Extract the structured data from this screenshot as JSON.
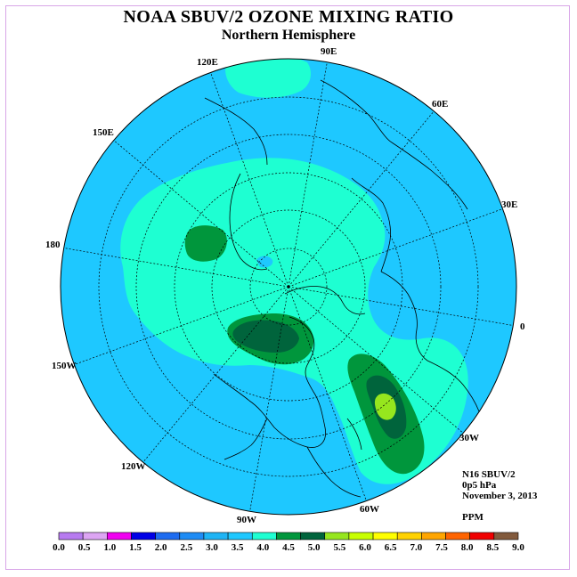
{
  "title": "NOAA SBUV/2 OZONE MIXING RATIO",
  "subtitle": "Northern Hemisphere",
  "longitude_labels": {
    "lon_90e": "90E",
    "lon_120e": "120E",
    "lon_60e": "60E",
    "lon_150e": "150E",
    "lon_30e": "30E",
    "lon_180": "180",
    "lon_0": "0",
    "lon_150w": "150W",
    "lon_30w": "30W",
    "lon_120w": "120W",
    "lon_60w": "60W",
    "lon_90w": "90W"
  },
  "info": {
    "instrument": "N16 SBUV/2",
    "level": "0p5 hPa",
    "date": "November 3, 2013",
    "units": "PPM"
  },
  "colorbar": {
    "labels": [
      "0.0",
      "0.5",
      "1.0",
      "1.5",
      "2.0",
      "2.5",
      "3.0",
      "3.5",
      "4.0",
      "4.5",
      "5.0",
      "5.5",
      "6.0",
      "6.5",
      "7.0",
      "7.5",
      "8.0",
      "8.5",
      "9.0"
    ],
    "colors": [
      "#b77bf0",
      "#dda5f3",
      "#f000f0",
      "#0000e6",
      "#1e6cf0",
      "#1e8cf5",
      "#1eb4f5",
      "#1ec8ff",
      "#1effd2",
      "#00963c",
      "#00643c",
      "#96e61e",
      "#c8ff00",
      "#ffff00",
      "#ffd200",
      "#ffa500",
      "#ff6400",
      "#f00000",
      "#825a3c"
    ]
  },
  "map_colors": {
    "background_level": "#1ec8ff",
    "level_4_0": "#1effd2",
    "level_4_5": "#00963c",
    "level_5_0": "#00643c",
    "level_5_5": "#96e61e"
  }
}
